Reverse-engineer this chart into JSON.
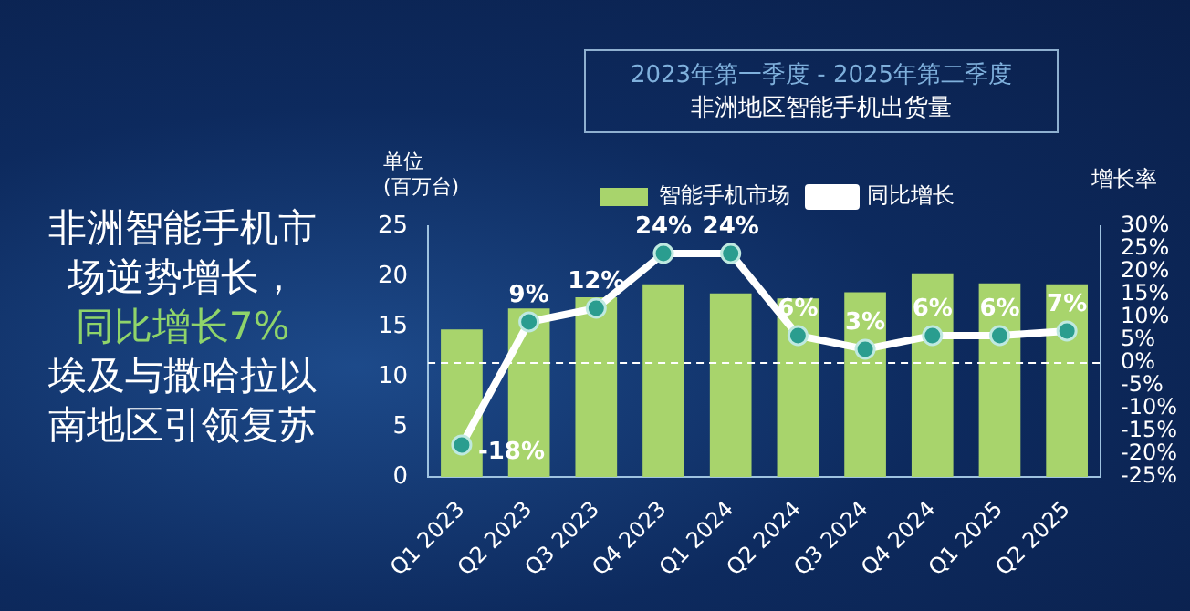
{
  "chart_data": {
    "type": "bar",
    "title": "2023年第一季度 - 2025年第二季度",
    "subtitle": "非洲地区智能手机出货量",
    "ylabel": "单位\n(百万台)",
    "y2label": "增长率",
    "annotations": [
      "非洲智能手机市场逆势增长，",
      "同比增长7%",
      "埃及与撒哈拉以南地区引领复苏"
    ],
    "categories": [
      "Q1 2023",
      "Q2 2023",
      "Q3 2023",
      "Q4 2023",
      "Q1 2024",
      "Q2 2024",
      "Q3 2024",
      "Q4 2024",
      "Q1 2025",
      "Q2 2025"
    ],
    "series": [
      {
        "name": "智能手机市场",
        "type": "bar",
        "color": "#a8d46c",
        "values": [
          14.7,
          16.8,
          17.9,
          19.2,
          18.3,
          17.8,
          18.4,
          20.3,
          19.3,
          19.2
        ]
      },
      {
        "name": "同比增长",
        "type": "line",
        "axis": "y2",
        "color": "#ffffff",
        "marker": "circle",
        "values": [
          -18,
          9,
          12,
          24,
          24,
          6,
          3,
          6,
          6,
          7
        ],
        "value_labels": [
          "-18%",
          "9%",
          "12%",
          "24%",
          "24%",
          "6%",
          "3%",
          "6%",
          "6%",
          "7%"
        ]
      }
    ],
    "ylim": [
      0,
      25
    ],
    "yticks": [
      0,
      5,
      10,
      15,
      20,
      25
    ],
    "y2lim": [
      -25,
      30
    ],
    "y2ticks": [
      {
        "value": -25,
        "label": "-25%"
      },
      {
        "value": -20,
        "label": "-20%"
      },
      {
        "value": -15,
        "label": "-15%"
      },
      {
        "value": -10,
        "label": "-10%"
      },
      {
        "value": -5,
        "label": "-5%"
      },
      {
        "value": 0,
        "label": "0%"
      },
      {
        "value": 5,
        "label": "5%"
      },
      {
        "value": 10,
        "label": "10%"
      },
      {
        "value": 15,
        "label": "15%"
      },
      {
        "value": 20,
        "label": "20%"
      },
      {
        "value": 25,
        "label": "25%"
      },
      {
        "value": 30,
        "label": "30%"
      }
    ],
    "ref_lines": [
      {
        "axis": "y2",
        "value": 0,
        "color": "#ffffff",
        "line_style": "dashed"
      }
    ],
    "grid": false,
    "legend": "top"
  }
}
